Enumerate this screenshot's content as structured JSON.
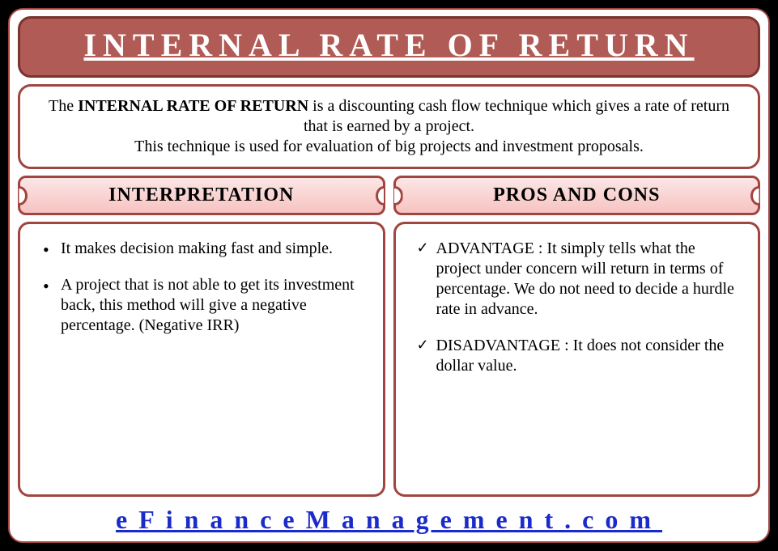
{
  "title": "INTERNAL RATE OF RETURN",
  "description": {
    "prefix": "The ",
    "bold": "INTERNAL RATE OF RETURN",
    "line1_suffix": " is a discounting cash flow technique which gives a rate of return that is earned by a project.",
    "line2": "This technique is used for evaluation of big projects and investment proposals."
  },
  "left": {
    "heading": "INTERPRETATION",
    "items": [
      "It makes decision making fast and simple.",
      "A project that is not able to get its investment back, this method will give a negative percentage. (Negative IRR)"
    ]
  },
  "right": {
    "heading": "PROS AND CONS",
    "items": [
      "ADVANTAGE : It simply tells what the project under concern will return in terms of percentage. We do not need to decide a hurdle rate in advance.",
      "DISADVANTAGE : It does not consider the dollar value."
    ]
  },
  "footer": "eFinanceManagement.com",
  "colors": {
    "title_bg": "#b05b55",
    "border": "#a0453f",
    "header_grad_top": "#fce6e6",
    "header_grad_bottom": "#f6c3c1",
    "footer_text": "#1a2acb",
    "page_bg": "#ffffff",
    "outer_bg": "#000000"
  }
}
